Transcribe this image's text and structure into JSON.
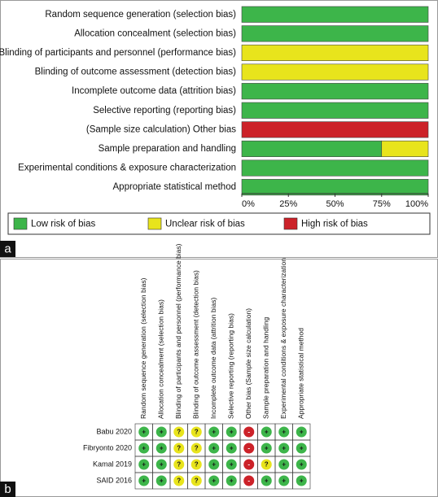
{
  "panel_labels": [
    "a",
    "b"
  ],
  "chart_data": {
    "type": "stacked-barh",
    "categories": [
      "Random sequence generation (selection bias)",
      "Allocation concealment (selection bias)",
      "Blinding of participants and personnel (performance bias)",
      "Blinding of outcome assessment (detection bias)",
      "Incomplete outcome data (attrition bias)",
      "Selective reporting (reporting bias)",
      "(Sample size calculation) Other bias",
      "Sample preparation and handling",
      "Experimental conditions & exposure characterization",
      "Appropriate statistical method"
    ],
    "series": [
      {
        "name": "Low risk of bias",
        "color": "#3db54a",
        "values": [
          100,
          100,
          0,
          0,
          100,
          100,
          0,
          75,
          100,
          100
        ]
      },
      {
        "name": "Unclear risk of bias",
        "color": "#e8e41c",
        "values": [
          0,
          0,
          100,
          100,
          0,
          0,
          0,
          25,
          0,
          0
        ]
      },
      {
        "name": "High risk of bias",
        "color": "#cc2229",
        "values": [
          0,
          0,
          0,
          0,
          0,
          0,
          100,
          0,
          0,
          0
        ]
      }
    ],
    "xlim": [
      0,
      100
    ],
    "xticks": [
      {
        "value": 0,
        "label": "0%"
      },
      {
        "value": 25,
        "label": "25%"
      },
      {
        "value": 50,
        "label": "50%"
      },
      {
        "value": 75,
        "label": "75%"
      },
      {
        "value": 100,
        "label": "100%"
      }
    ],
    "legend": "bottom"
  },
  "table": {
    "columns": [
      "Random sequence generation (selection bias)",
      "Allocation concealment (selection bias)",
      "Blinding of participants and personnel (performance bias)",
      "Blinding of outcome assessment (detection bias)",
      "Incomplete outcome data (attrition bias)",
      "Selective reporting (reporting bias)",
      "Other bias (Sample size calculation)",
      "Sample preparation and handling",
      "Experimental conditions & exposure characterization",
      "Appropriate statistical method"
    ],
    "rows": [
      {
        "study": "Babu 2020",
        "judgements": [
          "+",
          "+",
          "?",
          "?",
          "+",
          "+",
          "-",
          "+",
          "+",
          "+"
        ]
      },
      {
        "study": "Fibryonto 2020",
        "judgements": [
          "+",
          "+",
          "?",
          "?",
          "+",
          "+",
          "-",
          "+",
          "+",
          "+"
        ]
      },
      {
        "study": "Kamal 2019",
        "judgements": [
          "+",
          "+",
          "?",
          "?",
          "+",
          "+",
          "-",
          "?",
          "+",
          "+"
        ]
      },
      {
        "study": "SAID 2016",
        "judgements": [
          "+",
          "+",
          "?",
          "?",
          "+",
          "+",
          "-",
          "+",
          "+",
          "+"
        ]
      }
    ],
    "judgement_colors": {
      "+": "#3db54a",
      "?": "#e8e41c",
      "-": "#cc2229"
    }
  }
}
